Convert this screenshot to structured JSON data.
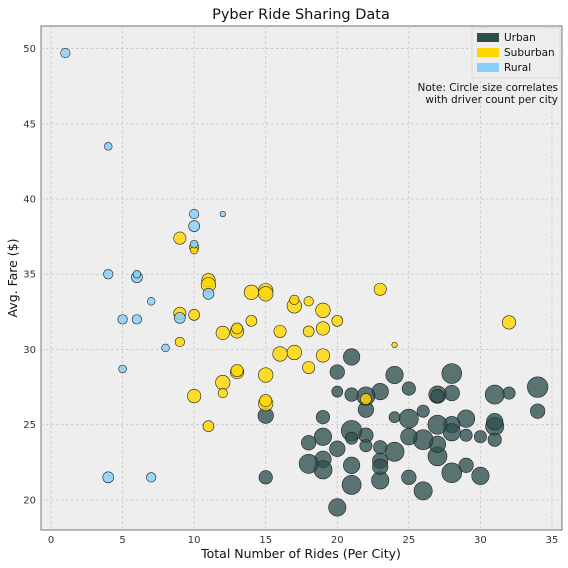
{
  "chart_data": {
    "type": "scatter",
    "title": "Pyber Ride Sharing Data",
    "xlabel": "Total Number of Rides (Per City)",
    "ylabel": "Avg. Fare ($)",
    "xlim": [
      -0.7,
      35.7
    ],
    "ylim": [
      18,
      51.5
    ],
    "xticks": [
      0,
      5,
      10,
      15,
      20,
      25,
      30,
      35
    ],
    "yticks": [
      20,
      25,
      30,
      35,
      40,
      45,
      50
    ],
    "grid": true,
    "legend_position": "top-right",
    "note": [
      "Note: Circle size correlates",
      "with driver count per city"
    ],
    "series": [
      {
        "name": "Urban",
        "color": "#2f4f4f",
        "points": [
          [
            34,
            27.5,
            14
          ],
          [
            34,
            25.9,
            7
          ],
          [
            32,
            27.1,
            5
          ],
          [
            31,
            27.0,
            12
          ],
          [
            31,
            24.9,
            11
          ],
          [
            31,
            25.2,
            9
          ],
          [
            31,
            24.0,
            6
          ],
          [
            30,
            24.2,
            5
          ],
          [
            30,
            21.6,
            10
          ],
          [
            29,
            25.4,
            10
          ],
          [
            29,
            22.3,
            7
          ],
          [
            29,
            24.3,
            5
          ],
          [
            28,
            28.4,
            13
          ],
          [
            28,
            25.0,
            9
          ],
          [
            28,
            24.5,
            10
          ],
          [
            28,
            21.8,
            13
          ],
          [
            28,
            27.1,
            8
          ],
          [
            27,
            27.0,
            10
          ],
          [
            27,
            25.0,
            12
          ],
          [
            27,
            22.9,
            12
          ],
          [
            27,
            23.7,
            9
          ],
          [
            27,
            26.9,
            6
          ],
          [
            26,
            24.0,
            13
          ],
          [
            26,
            20.6,
            11
          ],
          [
            26,
            25.9,
            5
          ],
          [
            25,
            25.4,
            12
          ],
          [
            25,
            24.2,
            9
          ],
          [
            25,
            21.5,
            7
          ],
          [
            25,
            27.4,
            6
          ],
          [
            24,
            28.3,
            10
          ],
          [
            24,
            23.2,
            12
          ],
          [
            24,
            25.5,
            4
          ],
          [
            23,
            27.2,
            9
          ],
          [
            23,
            22.6,
            8
          ],
          [
            23,
            21.3,
            10
          ],
          [
            23,
            23.5,
            6
          ],
          [
            23,
            22.2,
            8
          ],
          [
            22,
            26.0,
            8
          ],
          [
            22,
            26.9,
            11
          ],
          [
            22,
            24.3,
            7
          ],
          [
            22,
            23.6,
            5
          ],
          [
            21,
            29.5,
            9
          ],
          [
            21,
            24.6,
            14
          ],
          [
            21,
            22.3,
            9
          ],
          [
            21,
            21.0,
            12
          ],
          [
            21,
            27.0,
            6
          ],
          [
            21,
            24.1,
            5
          ],
          [
            20,
            28.5,
            7
          ],
          [
            20,
            23.4,
            8
          ],
          [
            20,
            19.5,
            10
          ],
          [
            20,
            27.2,
            4
          ],
          [
            19,
            24.2,
            10
          ],
          [
            19,
            25.5,
            6
          ],
          [
            19,
            22.7,
            9
          ],
          [
            19,
            22.0,
            11
          ],
          [
            18,
            22.4,
            12
          ],
          [
            18,
            23.8,
            7
          ],
          [
            15,
            25.6,
            8
          ],
          [
            15,
            21.5,
            6
          ]
        ]
      },
      {
        "name": "Suburban",
        "color": "#ffd700",
        "points": [
          [
            32,
            31.8,
            6
          ],
          [
            23,
            34.0,
            5
          ],
          [
            20,
            31.9,
            4
          ],
          [
            19,
            32.6,
            7
          ],
          [
            19,
            31.4,
            6
          ],
          [
            19,
            29.6,
            6
          ],
          [
            18,
            33.2,
            3
          ],
          [
            18,
            31.2,
            4
          ],
          [
            18,
            28.8,
            5
          ],
          [
            17,
            32.9,
            7
          ],
          [
            17,
            33.3,
            3
          ],
          [
            17,
            29.8,
            7
          ],
          [
            16,
            31.2,
            5
          ],
          [
            16,
            29.7,
            7
          ],
          [
            15,
            33.9,
            7
          ],
          [
            15,
            33.7,
            7
          ],
          [
            15,
            28.3,
            7
          ],
          [
            15,
            26.4,
            7
          ],
          [
            15,
            26.6,
            5
          ],
          [
            14,
            33.8,
            7
          ],
          [
            14,
            31.9,
            4
          ],
          [
            13,
            31.2,
            6
          ],
          [
            13,
            31.4,
            4
          ],
          [
            13,
            28.5,
            6
          ],
          [
            13,
            28.6,
            5
          ],
          [
            12,
            31.1,
            6
          ],
          [
            12,
            27.8,
            7
          ],
          [
            12,
            27.1,
            3
          ],
          [
            11,
            34.6,
            6
          ],
          [
            11,
            34.3,
            7
          ],
          [
            11,
            24.9,
            4
          ],
          [
            10,
            36.8,
            3
          ],
          [
            10,
            36.6,
            2
          ],
          [
            10,
            32.3,
            4
          ],
          [
            10,
            26.9,
            6
          ],
          [
            9,
            37.4,
            5
          ],
          [
            9,
            32.4,
            5
          ],
          [
            9,
            30.5,
            3
          ],
          [
            22,
            26.7,
            4
          ],
          [
            24,
            30.3,
            1
          ]
        ]
      },
      {
        "name": "Rural",
        "color": "#87cefa",
        "points": [
          [
            1,
            49.7,
            3
          ],
          [
            4,
            43.5,
            2
          ],
          [
            4,
            35.0,
            3
          ],
          [
            4,
            21.5,
            4
          ],
          [
            5,
            32.0,
            3
          ],
          [
            5,
            28.7,
            2
          ],
          [
            6,
            34.8,
            4
          ],
          [
            6,
            35.0,
            2
          ],
          [
            6,
            32.0,
            3
          ],
          [
            7,
            33.2,
            2
          ],
          [
            7,
            21.5,
            3
          ],
          [
            8,
            30.1,
            2
          ],
          [
            9,
            32.1,
            4
          ],
          [
            10,
            39.0,
            3
          ],
          [
            10,
            38.2,
            4
          ],
          [
            10,
            37.0,
            2
          ],
          [
            11,
            33.7,
            4
          ],
          [
            12,
            39.0,
            1
          ]
        ]
      }
    ]
  }
}
